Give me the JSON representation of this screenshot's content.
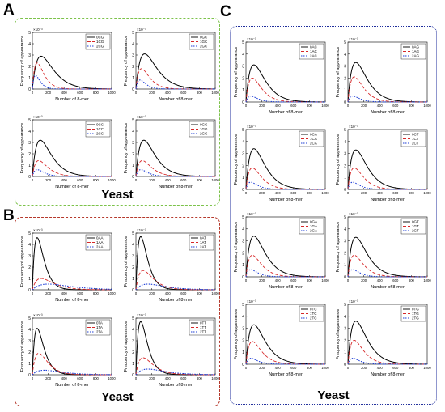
{
  "colors": {
    "s0": "#000000",
    "s1": "#d62728",
    "s2": "#1f3fd6",
    "boxA": "#7cc24a",
    "boxB": "#b5382b",
    "boxC": "#1f2e9c"
  },
  "common": {
    "xlabel": "Number of 8-mer",
    "ylabel": "Frequency of appearance",
    "exponent": "×10⁻³",
    "xticks": [
      0,
      200,
      400,
      600,
      800,
      1000
    ],
    "yticks": [
      0,
      1,
      2,
      3,
      4,
      5
    ]
  },
  "panels": [
    {
      "letter": "A",
      "footer": "Yeast"
    },
    {
      "letter": "B",
      "footer": "Yeast"
    },
    {
      "letter": "C",
      "footer": "Yeast"
    }
  ],
  "chart_data": [
    {
      "type": "line",
      "panel": "A",
      "ylim": [
        0,
        5
      ],
      "xlim": [
        0,
        1000
      ],
      "legend": "top-right",
      "series": [
        {
          "name": "0CG",
          "peak": 2.9,
          "mode": 110
        },
        {
          "name": "1CG",
          "peak": 2.3,
          "mode": 60
        },
        {
          "name": "2CG",
          "peak": 1.2,
          "mode": 40
        }
      ]
    },
    {
      "type": "line",
      "panel": "A",
      "ylim": [
        0,
        5
      ],
      "xlim": [
        0,
        1000
      ],
      "legend": "top-right",
      "series": [
        {
          "name": "0GC",
          "peak": 3.1,
          "mode": 110
        },
        {
          "name": "1GC",
          "peak": 1.8,
          "mode": 70
        },
        {
          "name": "2GC",
          "peak": 0.8,
          "mode": 50
        }
      ]
    },
    {
      "type": "line",
      "panel": "A",
      "ylim": [
        0,
        5
      ],
      "xlim": [
        0,
        1000
      ],
      "legend": "top-right",
      "series": [
        {
          "name": "0CC",
          "peak": 3.2,
          "mode": 100
        },
        {
          "name": "1CC",
          "peak": 1.4,
          "mode": 80
        },
        {
          "name": "2CC",
          "peak": 0.6,
          "mode": 60
        }
      ]
    },
    {
      "type": "line",
      "panel": "A",
      "ylim": [
        0,
        5
      ],
      "xlim": [
        0,
        1000
      ],
      "legend": "top-right",
      "series": [
        {
          "name": "0GG",
          "peak": 3.2,
          "mode": 100
        },
        {
          "name": "1GG",
          "peak": 1.4,
          "mode": 80
        },
        {
          "name": "2GG",
          "peak": 0.6,
          "mode": 60
        }
      ]
    },
    {
      "type": "line",
      "panel": "B",
      "ylim": [
        0,
        5
      ],
      "xlim": [
        0,
        1000
      ],
      "legend": "top-right",
      "series": [
        {
          "name": "0AA",
          "peak": 4.6,
          "mode": 60
        },
        {
          "name": "1AA",
          "peak": 1.0,
          "mode": 110
        },
        {
          "name": "2AA",
          "peak": 0.5,
          "mode": 200
        }
      ]
    },
    {
      "type": "line",
      "panel": "B",
      "ylim": [
        0,
        5
      ],
      "xlim": [
        0,
        1000
      ],
      "legend": "top-right",
      "series": [
        {
          "name": "0AT",
          "peak": 4.7,
          "mode": 60
        },
        {
          "name": "1AT",
          "peak": 1.7,
          "mode": 90
        },
        {
          "name": "2AT",
          "peak": 0.5,
          "mode": 150
        }
      ]
    },
    {
      "type": "line",
      "panel": "B",
      "ylim": [
        0,
        5
      ],
      "xlim": [
        0,
        1000
      ],
      "legend": "top-right",
      "series": [
        {
          "name": "0TA",
          "peak": 4.1,
          "mode": 60
        },
        {
          "name": "1TA",
          "peak": 1.9,
          "mode": 80
        },
        {
          "name": "2TA",
          "peak": 0.4,
          "mode": 150
        }
      ]
    },
    {
      "type": "line",
      "panel": "B",
      "ylim": [
        0,
        5
      ],
      "xlim": [
        0,
        1000
      ],
      "legend": "top-right",
      "series": [
        {
          "name": "0TT",
          "peak": 4.7,
          "mode": 60
        },
        {
          "name": "1TT",
          "peak": 1.5,
          "mode": 90
        },
        {
          "name": "2TT",
          "peak": 0.5,
          "mode": 150
        }
      ]
    },
    {
      "type": "line",
      "panel": "C",
      "ylim": [
        0,
        5
      ],
      "xlim": [
        0,
        1000
      ],
      "legend": "top-right",
      "series": [
        {
          "name": "0AC",
          "peak": 3.1,
          "mode": 100
        },
        {
          "name": "1AC",
          "peak": 2.0,
          "mode": 80
        },
        {
          "name": "2AC",
          "peak": 0.5,
          "mode": 60
        }
      ]
    },
    {
      "type": "line",
      "panel": "C",
      "ylim": [
        0,
        5
      ],
      "xlim": [
        0,
        1000
      ],
      "legend": "top-right",
      "series": [
        {
          "name": "0AG",
          "peak": 3.3,
          "mode": 100
        },
        {
          "name": "1AG",
          "peak": 2.1,
          "mode": 80
        },
        {
          "name": "2AG",
          "peak": 0.5,
          "mode": 60
        }
      ]
    },
    {
      "type": "line",
      "panel": "C",
      "ylim": [
        0,
        5
      ],
      "xlim": [
        0,
        1000
      ],
      "legend": "top-right",
      "series": [
        {
          "name": "0CA",
          "peak": 3.4,
          "mode": 100
        },
        {
          "name": "1CA",
          "peak": 1.8,
          "mode": 80
        },
        {
          "name": "2CA",
          "peak": 0.6,
          "mode": 60
        }
      ]
    },
    {
      "type": "line",
      "panel": "C",
      "ylim": [
        0,
        5
      ],
      "xlim": [
        0,
        1000
      ],
      "legend": "top-right",
      "series": [
        {
          "name": "0CT",
          "peak": 3.3,
          "mode": 100
        },
        {
          "name": "1CT",
          "peak": 1.8,
          "mode": 80
        },
        {
          "name": "2CT",
          "peak": 0.6,
          "mode": 60
        }
      ]
    },
    {
      "type": "line",
      "panel": "C",
      "ylim": [
        0,
        5
      ],
      "xlim": [
        0,
        1000
      ],
      "legend": "top-right",
      "series": [
        {
          "name": "0GA",
          "peak": 3.4,
          "mode": 100
        },
        {
          "name": "1GA",
          "peak": 1.8,
          "mode": 80
        },
        {
          "name": "2GA",
          "peak": 0.6,
          "mode": 60
        }
      ]
    },
    {
      "type": "line",
      "panel": "C",
      "ylim": [
        0,
        5
      ],
      "xlim": [
        0,
        1000
      ],
      "legend": "top-right",
      "series": [
        {
          "name": "0GT",
          "peak": 3.3,
          "mode": 100
        },
        {
          "name": "1GT",
          "peak": 1.8,
          "mode": 80
        },
        {
          "name": "2GT",
          "peak": 0.6,
          "mode": 60
        }
      ]
    },
    {
      "type": "line",
      "panel": "C",
      "ylim": [
        0,
        5
      ],
      "xlim": [
        0,
        1000
      ],
      "legend": "top-right",
      "series": [
        {
          "name": "0TC",
          "peak": 3.3,
          "mode": 100
        },
        {
          "name": "1TC",
          "peak": 1.9,
          "mode": 80
        },
        {
          "name": "2TC",
          "peak": 0.5,
          "mode": 60
        }
      ]
    },
    {
      "type": "line",
      "panel": "C",
      "ylim": [
        0,
        5
      ],
      "xlim": [
        0,
        1000
      ],
      "legend": "top-right",
      "series": [
        {
          "name": "0TG",
          "peak": 3.6,
          "mode": 100
        },
        {
          "name": "1TG",
          "peak": 2.0,
          "mode": 80
        },
        {
          "name": "2TG",
          "peak": 0.5,
          "mode": 60
        }
      ]
    }
  ]
}
